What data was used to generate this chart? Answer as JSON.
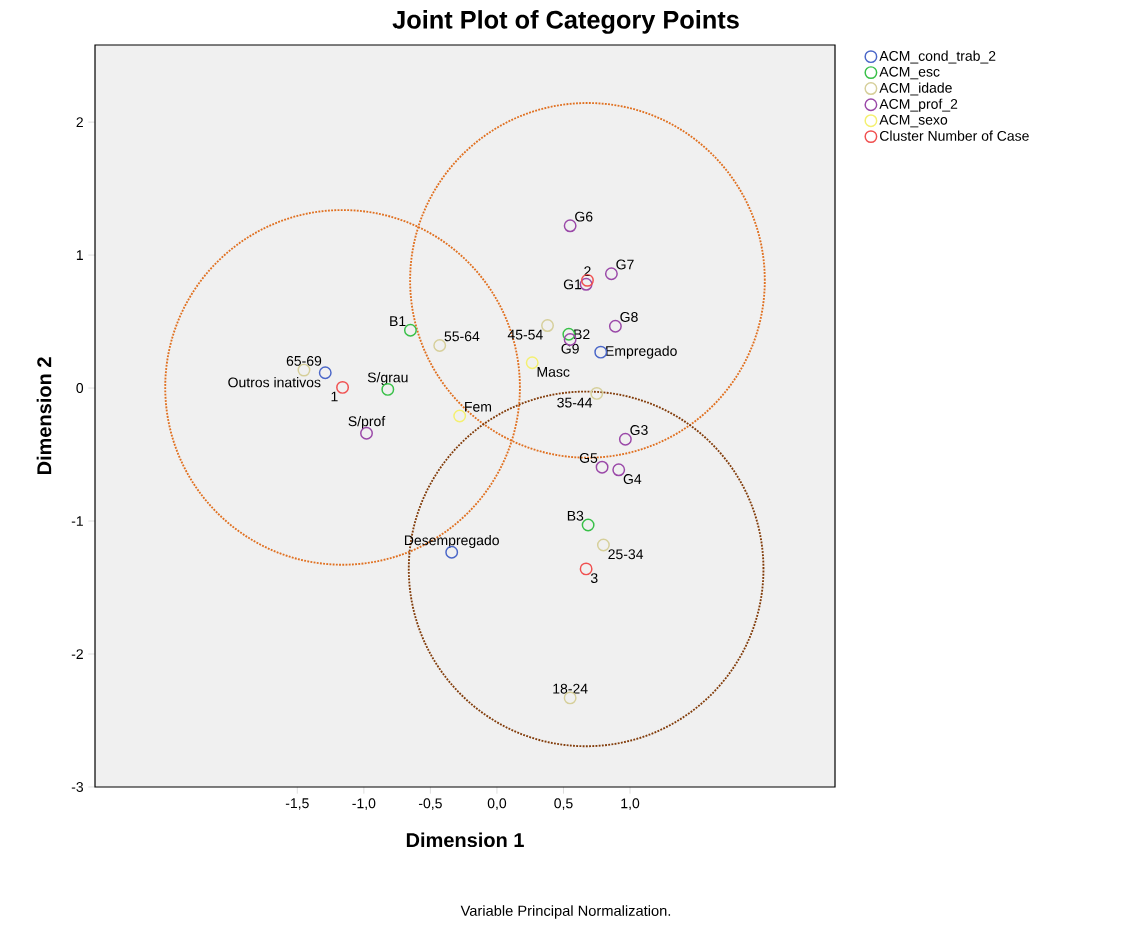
{
  "chart_data": {
    "type": "scatter",
    "title": "Joint Plot of Category Points",
    "xlabel": "Dimension 1",
    "ylabel": "Dimension 2",
    "xlim": [
      -3.02,
      2.54
    ],
    "ylim": [
      -3,
      2.58
    ],
    "xticks": [
      {
        "value": -1.5,
        "label": "-1,5"
      },
      {
        "value": -1.0,
        "label": "-1,0"
      },
      {
        "value": -0.5,
        "label": "-0,5"
      },
      {
        "value": 0.0,
        "label": "0,0"
      },
      {
        "value": 0.5,
        "label": "0,5"
      },
      {
        "value": 1.0,
        "label": "1,0"
      }
    ],
    "yticks": [
      -3,
      -2,
      -1,
      0,
      1,
      2
    ],
    "marker": "circle",
    "legend": "right",
    "grid": false,
    "series": [
      {
        "name": "ACM_cond_trab_2",
        "color": "#4a66c8",
        "x": [
          -1.29,
          0.78,
          -0.34
        ],
        "values": [
          0.115,
          0.27,
          -1.235
        ]
      },
      {
        "name": "ACM_esc",
        "color": "#38c048",
        "x": [
          -0.65,
          -0.82,
          0.54,
          0.685
        ],
        "values": [
          0.435,
          -0.01,
          0.405,
          -1.03
        ]
      },
      {
        "name": "ACM_idade",
        "color": "#d6cf9a",
        "x": [
          -1.45,
          -0.43,
          0.38,
          0.75,
          0.8,
          0.55
        ],
        "values": [
          0.135,
          0.32,
          0.47,
          -0.04,
          -1.18,
          -2.33
        ]
      },
      {
        "name": "ACM_prof_2",
        "color": "#9a48a8",
        "x": [
          -0.98,
          0.55,
          0.67,
          0.86,
          0.89,
          0.55,
          0.965,
          0.79,
          0.915
        ],
        "values": [
          -0.34,
          1.22,
          0.78,
          0.86,
          0.465,
          0.365,
          -0.385,
          -0.595,
          -0.615
        ]
      },
      {
        "name": "ACM_sexo",
        "color": "#f4f070",
        "x": [
          -0.28,
          0.265
        ],
        "values": [
          -0.21,
          0.19
        ]
      },
      {
        "name": "Cluster Number of Case",
        "color": "#f05050",
        "x": [
          -1.16,
          0.68,
          0.67
        ],
        "values": [
          0.005,
          0.81,
          -1.36
        ]
      }
    ],
    "annotations": [
      {
        "text": "Outros inativos",
        "x": -1.29,
        "y": 0.115
      },
      {
        "text": "Empregado",
        "x": 0.78,
        "y": 0.27
      },
      {
        "text": "Desempregado",
        "x": -0.34,
        "y": -1.235
      },
      {
        "text": "B1",
        "x": -0.65,
        "y": 0.435
      },
      {
        "text": "S/grau",
        "x": -0.82,
        "y": -0.01
      },
      {
        "text": "B2",
        "x": 0.54,
        "y": 0.405
      },
      {
        "text": "B3",
        "x": 0.685,
        "y": -1.03
      },
      {
        "text": "65-69",
        "x": -1.45,
        "y": 0.135
      },
      {
        "text": "55-64",
        "x": -0.43,
        "y": 0.32
      },
      {
        "text": "45-54",
        "x": 0.38,
        "y": 0.47
      },
      {
        "text": "35-44",
        "x": 0.75,
        "y": -0.04
      },
      {
        "text": "25-34",
        "x": 0.8,
        "y": -1.18
      },
      {
        "text": "18-24",
        "x": 0.55,
        "y": -2.33
      },
      {
        "text": "S/prof",
        "x": -0.98,
        "y": -0.34
      },
      {
        "text": "G6",
        "x": 0.55,
        "y": 1.22
      },
      {
        "text": "G1",
        "x": 0.67,
        "y": 0.78
      },
      {
        "text": "G7",
        "x": 0.86,
        "y": 0.86
      },
      {
        "text": "G8",
        "x": 0.89,
        "y": 0.465
      },
      {
        "text": "G9",
        "x": 0.55,
        "y": 0.365
      },
      {
        "text": "G3",
        "x": 0.965,
        "y": -0.385
      },
      {
        "text": "G5",
        "x": 0.79,
        "y": -0.595
      },
      {
        "text": "G4",
        "x": 0.915,
        "y": -0.615
      },
      {
        "text": "Fem",
        "x": -0.28,
        "y": -0.21
      },
      {
        "text": "Masc",
        "x": 0.265,
        "y": 0.19
      },
      {
        "text": "1",
        "x": -1.16,
        "y": 0.005
      },
      {
        "text": "2",
        "x": 0.68,
        "y": 0.81
      },
      {
        "text": "3",
        "x": 0.67,
        "y": -1.36
      },
      "Variable Principal Normalization."
    ]
  }
}
